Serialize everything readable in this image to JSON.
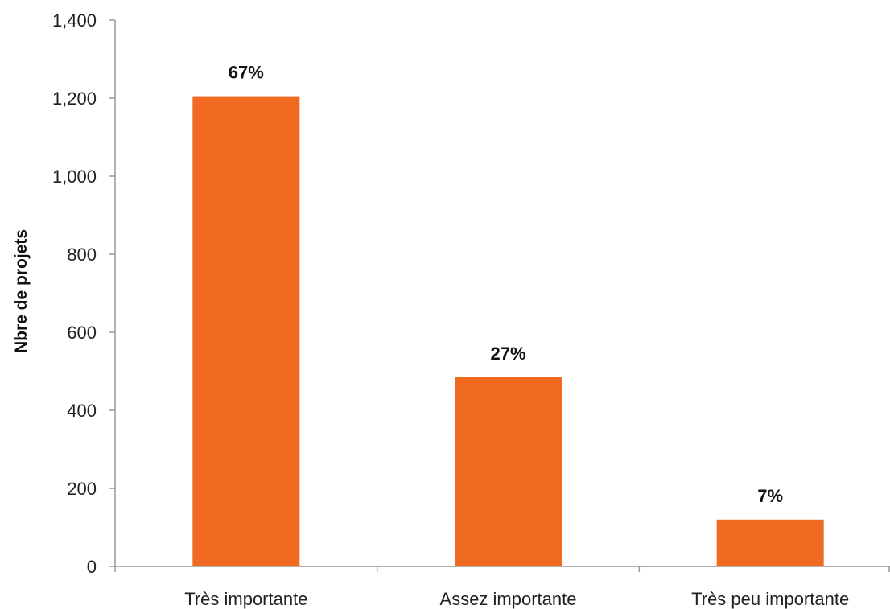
{
  "chart_data": {
    "type": "bar",
    "categories": [
      "Très importante",
      "Assez importante",
      "Très peu importante"
    ],
    "values": [
      1205,
      485,
      120
    ],
    "data_labels": [
      "67%",
      "27%",
      "7%"
    ],
    "title": "",
    "xlabel": "",
    "ylabel": "Nbre de projets",
    "ylim": [
      0,
      1400
    ],
    "yticks": [
      0,
      200,
      400,
      600,
      800,
      1000,
      1200,
      1400
    ],
    "ytick_labels": [
      "0",
      "200",
      "400",
      "600",
      "800",
      "1,000",
      "1,200",
      "1,400"
    ],
    "grid": false,
    "legend": "none",
    "bar_color": "#F06A22"
  }
}
